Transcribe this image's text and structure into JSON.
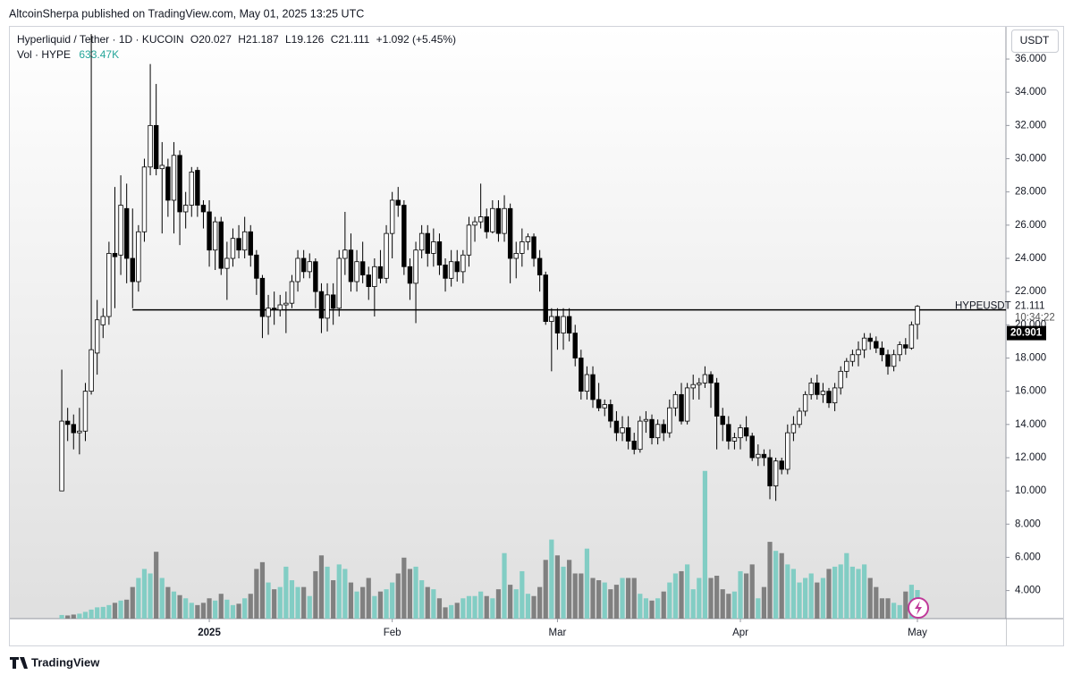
{
  "header": {
    "published": "AltcoinSherpa published on TradingView.com, May 01, 2025 13:25 UTC"
  },
  "footer": {
    "brand": "TradingView"
  },
  "chart_data": {
    "type": "candlestick",
    "legend": {
      "symbol": "Hyperliquid / Tether · 1D · KUCOIN",
      "open": "O20.027",
      "high": "H21.187",
      "low": "L19.126",
      "close": "C21.111",
      "change": "+1.092 (+5.45%)",
      "volume_title": "Vol · HYPE",
      "volume_value": "633.47K"
    },
    "currency": "USDT",
    "open": [
      10,
      14.2,
      14,
      13.5,
      13.6,
      16,
      18.3,
      20,
      20.5,
      24.3,
      24.2,
      27,
      24,
      22.6,
      25.6,
      29.5,
      32,
      29.4,
      29.5,
      27.5,
      30.2,
      26.8,
      27.2,
      29.3,
      27.2,
      26.8,
      24.5,
      26.2,
      23.4,
      24,
      25.2,
      24.5,
      25.6,
      24.2,
      22.8,
      20.5,
      21,
      20.9,
      21.2,
      21.3,
      22.6,
      24,
      23.2,
      23.8,
      22,
      20.4,
      21.8,
      21,
      24,
      24.5,
      22.6,
      23.8,
      23,
      22.3,
      23.5,
      22.8,
      25.5,
      27.5,
      27.2,
      23.5,
      22.5,
      24.5,
      25.5,
      24.3,
      25,
      23.6,
      22.8,
      23.8,
      23.2,
      24.2,
      26,
      26.2,
      26.5,
      25.6,
      27,
      25.5,
      27,
      24,
      24.3,
      25,
      25.3,
      24,
      23,
      20.2,
      20.5,
      19.5,
      20.5,
      19.5,
      18,
      16,
      17,
      15.5,
      15,
      15.2,
      14.2,
      13.5,
      13.8,
      13,
      12.5,
      14.2,
      14.3,
      13.2,
      14,
      13.5,
      15,
      15.8,
      14.2,
      16.2,
      16.4,
      16.5,
      17,
      16.5,
      14.5,
      14,
      13,
      13.2,
      13.8,
      13.3,
      12,
      12.2,
      12,
      10.3,
      11.8,
      11.3,
      13.5,
      14,
      14.8,
      15.8,
      16.5,
      15.8,
      16,
      15.3,
      16.2,
      17.2,
      17.8,
      18.2,
      18.5,
      19.2,
      19,
      18.6,
      18.2,
      17.5,
      18.2,
      18.8,
      18.6,
      20.027
    ],
    "high": [
      17.3,
      15,
      14.6,
      15,
      16.5,
      37.5,
      21.5,
      21,
      25,
      28.3,
      29,
      28.5,
      27,
      26,
      30,
      35.7,
      34.5,
      31,
      30,
      31,
      30.5,
      28,
      29.5,
      29.5,
      27.5,
      27.5,
      26.5,
      26.5,
      25,
      25.8,
      26,
      26.5,
      26,
      24.5,
      23,
      21.8,
      22,
      21.8,
      22,
      23,
      24.5,
      24.5,
      24.3,
      24,
      22.5,
      22.5,
      22.5,
      24.5,
      26.8,
      25.5,
      24.5,
      25,
      23.5,
      24,
      24.5,
      26,
      28,
      28.3,
      27.5,
      24,
      25,
      26,
      26,
      25.8,
      25.5,
      24,
      24.5,
      24.5,
      24.5,
      26.5,
      26.5,
      28.5,
      27,
      27.5,
      27.5,
      27.8,
      27.3,
      25,
      25.8,
      25.5,
      25.5,
      24.5,
      23.2,
      21,
      21,
      21,
      21,
      20,
      18.5,
      17.5,
      17.5,
      16.5,
      15.5,
      15.5,
      14.8,
      14.5,
      14.5,
      13.5,
      14.5,
      14.8,
      14.6,
      14.3,
      14.3,
      15.5,
      16,
      16.5,
      16.5,
      17,
      16.8,
      17.5,
      17.2,
      16.8,
      15,
      14.5,
      13.5,
      14,
      14.5,
      13.5,
      12.8,
      12.5,
      12.5,
      12,
      12,
      14,
      14.5,
      15,
      16,
      16.8,
      17,
      16.5,
      16.2,
      16.5,
      17.5,
      18,
      18.5,
      19,
      19.5,
      19.5,
      19.3,
      19,
      18.5,
      18.5,
      19,
      19.2,
      20.2,
      21.187
    ],
    "low": [
      10,
      13,
      12.5,
      12.2,
      13,
      15.8,
      17,
      19.2,
      20,
      21,
      23,
      22.5,
      21,
      22,
      25,
      29,
      29,
      25.5,
      26.5,
      25.5,
      24.8,
      25.8,
      26.5,
      26.5,
      25.8,
      23.5,
      23.3,
      23,
      21.5,
      23.5,
      24,
      24,
      23.5,
      21.8,
      19.2,
      19.4,
      20,
      20.5,
      19.5,
      21,
      22,
      22.8,
      22.8,
      21,
      19.5,
      19.6,
      20,
      20.5,
      23,
      22,
      22,
      22.5,
      21.5,
      20.5,
      22.5,
      22.5,
      24,
      26.5,
      23,
      21.5,
      20.1,
      24,
      23.5,
      23.5,
      23,
      22,
      22.3,
      22.6,
      22.5,
      23.5,
      25,
      25.8,
      25.2,
      25.5,
      25,
      25,
      22.5,
      22.8,
      23.5,
      24.5,
      23.5,
      22,
      20,
      17.2,
      18.5,
      18.5,
      19,
      17.5,
      15.5,
      15.5,
      15,
      14.8,
      14.5,
      13.8,
      13,
      13,
      12.5,
      12.2,
      12.3,
      13.5,
      12.8,
      12.8,
      13,
      13.2,
      14.5,
      14,
      14,
      15.5,
      15.5,
      16.2,
      15,
      12.5,
      13,
      12.5,
      12.5,
      12.5,
      13,
      11.8,
      11.5,
      11.5,
      9.5,
      9.4,
      11,
      11,
      13,
      13.8,
      14.5,
      15.5,
      15.5,
      15.3,
      15,
      14.8,
      15.8,
      16.8,
      17.5,
      17.5,
      18,
      18.5,
      18.3,
      17.8,
      17,
      17.2,
      17.8,
      18.2,
      18.5,
      19.126
    ],
    "close": [
      14.2,
      14,
      13.5,
      13.6,
      16,
      18.5,
      20.3,
      20.5,
      24.3,
      24.1,
      27.2,
      24,
      22.6,
      25.6,
      29.5,
      32,
      29.4,
      29.6,
      27.5,
      30.2,
      26.8,
      27.2,
      29.2,
      27.2,
      26.8,
      24.5,
      26.2,
      23.4,
      24,
      25.2,
      24.5,
      25.6,
      24.2,
      22.8,
      20.5,
      21,
      20.9,
      21.2,
      21.3,
      22.6,
      24,
      23.2,
      23.8,
      22,
      20.4,
      21.8,
      21,
      24,
      24.5,
      22.6,
      23.8,
      23,
      22.3,
      23.5,
      22.8,
      25.5,
      27.5,
      27.2,
      23.5,
      22.5,
      24.5,
      25.5,
      24.3,
      25,
      23.6,
      22.8,
      23.8,
      23.2,
      24.2,
      26,
      26.2,
      26.5,
      25.6,
      27,
      25.5,
      27,
      24,
      24.3,
      25,
      25.3,
      24,
      23,
      20.2,
      20.5,
      19.5,
      20.5,
      19.5,
      18,
      16,
      17,
      15.5,
      15,
      15.2,
      14.2,
      13.5,
      13.8,
      13,
      12.5,
      14.2,
      14.3,
      13.2,
      14,
      13.5,
      15,
      15.8,
      14.2,
      16.2,
      16.4,
      16.5,
      17,
      16.5,
      14.5,
      14,
      13,
      13.2,
      13.8,
      13.3,
      12,
      12.2,
      12,
      10.3,
      11.8,
      11.3,
      13.5,
      14,
      14.8,
      15.8,
      16.5,
      15.8,
      16,
      15.3,
      16.2,
      17.2,
      17.8,
      18.2,
      18.5,
      19.2,
      19,
      18.6,
      18.2,
      17.5,
      18.2,
      18.8,
      18.6,
      20,
      21.111
    ],
    "volume": [
      80,
      70,
      90,
      110,
      150,
      200,
      250,
      260,
      300,
      350,
      400,
      420,
      700,
      900,
      1100,
      1000,
      1480,
      900,
      700,
      600,
      520,
      450,
      350,
      300,
      350,
      450,
      400,
      550,
      420,
      300,
      330,
      450,
      550,
      1100,
      1250,
      800,
      650,
      700,
      1150,
      850,
      700,
      700,
      500,
      1050,
      1400,
      1150,
      850,
      1200,
      1100,
      800,
      600,
      700,
      900,
      500,
      600,
      650,
      800,
      1000,
      1350,
      1100,
      1150,
      850,
      700,
      650,
      450,
      250,
      300,
      350,
      450,
      500,
      500,
      600,
      500,
      450,
      650,
      1450,
      750,
      650,
      1050,
      550,
      500,
      700,
      1300,
      1750,
      1400,
      1150,
      1300,
      1000,
      1000,
      1550,
      900,
      850,
      800,
      650,
      750,
      900,
      900,
      900,
      550,
      450,
      400,
      450,
      600,
      800,
      1000,
      1050,
      1200,
      650,
      900,
      3270,
      900,
      950,
      650,
      550,
      600,
      1050,
      1000,
      1200,
      450,
      700,
      1700,
      1500,
      1450,
      1200,
      1100,
      800,
      900,
      1000,
      800,
      900,
      1100,
      1150,
      1200,
      1450,
      1150,
      1100,
      1200,
      900,
      700,
      450,
      450,
      350,
      300,
      600,
      750,
      633.47
    ],
    "xlim": [
      -8.8,
      160
    ],
    "xticks": [
      {
        "value": 25,
        "label": "2025"
      },
      {
        "value": 56,
        "label": "Feb"
      },
      {
        "value": 84,
        "label": "Mar"
      },
      {
        "value": 115,
        "label": "Apr"
      },
      {
        "value": 145,
        "label": "May"
      }
    ],
    "ylim": [
      2.31,
      37.94
    ],
    "yticks": [
      {
        "value": 4,
        "label": "4.000"
      },
      {
        "value": 6,
        "label": "6.000"
      },
      {
        "value": 8,
        "label": "8.000"
      },
      {
        "value": 10,
        "label": "10.000"
      },
      {
        "value": 12,
        "label": "12.000"
      },
      {
        "value": 14,
        "label": "14.000"
      },
      {
        "value": 16,
        "label": "16.000"
      },
      {
        "value": 18,
        "label": "18.000"
      },
      {
        "value": 20,
        "label": "20.000"
      },
      {
        "value": 22,
        "label": "22.000"
      },
      {
        "value": 24,
        "label": "24.000"
      },
      {
        "value": 26,
        "label": "26.000"
      },
      {
        "value": 28,
        "label": "28.000"
      },
      {
        "value": 30,
        "label": "30.000"
      },
      {
        "value": 32,
        "label": "32.000"
      },
      {
        "value": 34,
        "label": "34.000"
      },
      {
        "value": 36,
        "label": "36.000"
      }
    ],
    "y2lim": [
      0,
      13100
    ],
    "hline": {
      "value": 20.901,
      "x_start": 12
    },
    "price_tag": {
      "symbol": "HYPEUSDT",
      "countdown": "10:34:22"
    },
    "up_color": "#ffffff",
    "down_color": "#000000",
    "wick_color": "#000000",
    "volume_up_color": "#82cdc4",
    "volume_down_color": "#808080"
  }
}
